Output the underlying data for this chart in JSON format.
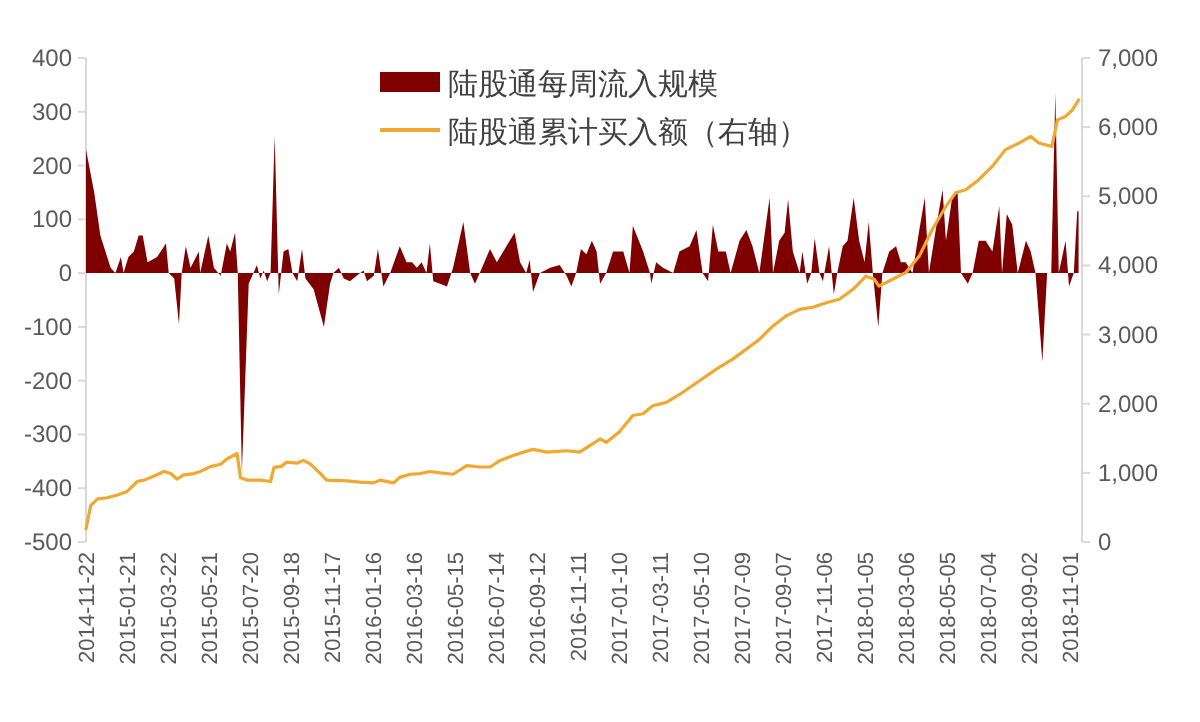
{
  "chart_data": {
    "type": "area",
    "legend": "top",
    "grid": false,
    "xlim": [
      "2014-11-22",
      "2018-11-18"
    ],
    "xticks": [
      "2014-11-22",
      "2015-01-21",
      "2015-03-22",
      "2015-05-21",
      "2015-07-20",
      "2015-09-18",
      "2015-11-17",
      "2016-01-16",
      "2016-03-16",
      "2016-05-15",
      "2016-07-14",
      "2016-09-12",
      "2016-11-11",
      "2017-01-10",
      "2017-03-11",
      "2017-05-10",
      "2017-07-09",
      "2017-09-07",
      "2017-11-06",
      "2018-01-05",
      "2018-03-06",
      "2018-05-05",
      "2018-07-04",
      "2018-09-02",
      "2018-11-01"
    ],
    "ylim": [
      -500,
      400
    ],
    "yticks": [
      -500,
      -400,
      -300,
      -200,
      -100,
      0,
      100,
      200,
      300,
      400
    ],
    "y2lim": [
      0,
      7000
    ],
    "y2ticks": [
      0,
      {
        "value": 1000,
        "label": "1,000"
      },
      {
        "value": 2000,
        "label": "2,000"
      },
      {
        "value": 3000,
        "label": "3,000"
      },
      {
        "value": 4000,
        "label": "4,000"
      },
      {
        "value": 5000,
        "label": "5,000"
      },
      {
        "value": 6000,
        "label": "6,000"
      },
      {
        "value": 7000,
        "label": "7,000"
      }
    ],
    "series": [
      {
        "name": "陆股通每周流入规模",
        "color": "#7f0000",
        "x": [
          "2014-11-22",
          "2014-12-04",
          "2014-12-13",
          "2014-12-28",
          "2015-01-04",
          "2015-01-12",
          "2015-01-16",
          "2015-01-23",
          "2015-01-31",
          "2015-02-07",
          "2015-02-13",
          "2015-02-20",
          "2015-03-06",
          "2015-03-19",
          "2015-03-23",
          "2015-03-31",
          "2015-04-07",
          "2015-04-11",
          "2015-04-17",
          "2015-04-24",
          "2015-05-06",
          "2015-05-08",
          "2015-05-20",
          "2015-05-28",
          "2015-06-07",
          "2015-06-16",
          "2015-06-21",
          "2015-06-28",
          "2015-07-02",
          "2015-07-08",
          "2015-07-18",
          "2015-07-25",
          "2015-07-30",
          "2015-08-04",
          "2015-08-09",
          "2015-08-14",
          "2015-08-19",
          "2015-08-25",
          "2015-08-31",
          "2015-09-07",
          "2015-09-14",
          "2015-09-20",
          "2015-09-27",
          "2015-10-04",
          "2015-10-09",
          "2015-10-21",
          "2015-11-05",
          "2015-11-14",
          "2015-11-19",
          "2015-11-27",
          "2015-12-04",
          "2015-12-13",
          "2015-12-23",
          "2016-01-02",
          "2016-01-07",
          "2016-01-17",
          "2016-01-23",
          "2016-01-31",
          "2016-02-10",
          "2016-02-24",
          "2016-03-05",
          "2016-03-13",
          "2016-03-20",
          "2016-03-27",
          "2016-04-03",
          "2016-04-08",
          "2016-04-13",
          "2016-04-23",
          "2016-05-03",
          "2016-05-12",
          "2016-05-27",
          "2016-06-06",
          "2016-06-13",
          "2016-06-20",
          "2016-07-05",
          "2016-07-15",
          "2016-07-29",
          "2016-08-10",
          "2016-08-18",
          "2016-08-27",
          "2016-09-01",
          "2016-09-06",
          "2016-09-16",
          "2016-10-01",
          "2016-10-15",
          "2016-10-25",
          "2016-11-01",
          "2016-11-08",
          "2016-11-15",
          "2016-11-23",
          "2016-12-01",
          "2016-12-08",
          "2016-12-13",
          "2016-12-22",
          "2017-01-01",
          "2017-01-16",
          "2017-01-25",
          "2017-01-30",
          "2017-02-14",
          "2017-02-24",
          "2017-02-26",
          "2017-03-05",
          "2017-03-15",
          "2017-03-30",
          "2017-04-08",
          "2017-04-23",
          "2017-05-03",
          "2017-05-12",
          "2017-05-20",
          "2017-05-27",
          "2017-06-04",
          "2017-06-15",
          "2017-06-22",
          "2017-07-05",
          "2017-07-15",
          "2017-07-24",
          "2017-08-03",
          "2017-08-18",
          "2017-08-23",
          "2017-09-01",
          "2017-09-09",
          "2017-09-14",
          "2017-09-21",
          "2017-10-01",
          "2017-10-05",
          "2017-10-12",
          "2017-10-18",
          "2017-10-23",
          "2017-10-30",
          "2017-11-04",
          "2017-11-13",
          "2017-11-20",
          "2017-11-25",
          "2017-12-03",
          "2017-12-10",
          "2017-12-19",
          "2017-12-27",
          "2018-01-04",
          "2018-01-10",
          "2018-01-16",
          "2018-01-24",
          "2018-01-30",
          "2018-02-09",
          "2018-02-19",
          "2018-02-26",
          "2018-03-05",
          "2018-03-15",
          "2018-03-25",
          "2018-04-02",
          "2018-04-08",
          "2018-04-18",
          "2018-04-28",
          "2018-05-03",
          "2018-05-12",
          "2018-05-20",
          "2018-05-25",
          "2018-06-04",
          "2018-06-11",
          "2018-06-20",
          "2018-06-30",
          "2018-07-10",
          "2018-07-20",
          "2018-07-24",
          "2018-07-31",
          "2018-08-08",
          "2018-08-16",
          "2018-08-28",
          "2018-09-04",
          "2018-09-11",
          "2018-09-21",
          "2018-09-28",
          "2018-10-04",
          "2018-10-10",
          "2018-10-15",
          "2018-10-20",
          "2018-10-25",
          "2018-10-30",
          "2018-11-06",
          "2018-11-11",
          "2018-11-13"
        ],
        "values": [
          230,
          150,
          70,
          10,
          0,
          30,
          0,
          30,
          40,
          70,
          70,
          20,
          30,
          55,
          0,
          -10,
          -95,
          0,
          50,
          10,
          40,
          0,
          70,
          10,
          -5,
          55,
          40,
          75,
          0,
          -370,
          -20,
          0,
          15,
          -10,
          5,
          -15,
          0,
          255,
          -40,
          40,
          45,
          0,
          -15,
          45,
          -10,
          -30,
          -100,
          -20,
          0,
          10,
          -10,
          -15,
          -5,
          5,
          -15,
          -5,
          45,
          -25,
          0,
          50,
          20,
          20,
          10,
          20,
          0,
          55,
          -15,
          -20,
          -25,
          10,
          95,
          0,
          -20,
          0,
          45,
          20,
          50,
          75,
          20,
          0,
          25,
          -35,
          0,
          10,
          15,
          -5,
          -25,
          0,
          45,
          35,
          60,
          40,
          -20,
          0,
          40,
          40,
          0,
          88,
          40,
          0,
          -20,
          20,
          10,
          0,
          40,
          50,
          80,
          0,
          -15,
          90,
          40,
          40,
          0,
          60,
          80,
          50,
          0,
          140,
          0,
          60,
          75,
          137,
          40,
          0,
          40,
          -20,
          0,
          65,
          0,
          -15,
          50,
          -40,
          0,
          50,
          60,
          140,
          60,
          20,
          95,
          0,
          -100,
          0,
          40,
          50,
          20,
          20,
          0,
          80,
          140,
          0,
          80,
          155,
          60,
          140,
          150,
          0,
          -20,
          0,
          60,
          60,
          40,
          125,
          0,
          110,
          90,
          0,
          60,
          40,
          0,
          -165,
          0,
          0,
          335,
          0,
          30,
          60,
          -25,
          0,
          115,
          115
        ]
      },
      {
        "name": "陆股通累计买入额（右轴）",
        "type": "line",
        "axis": "y2",
        "color": "#f0a830",
        "x": [
          "2014-11-22",
          "2014-11-29",
          "2014-12-09",
          "2014-12-23",
          "2015-01-07",
          "2015-01-21",
          "2015-02-05",
          "2015-02-15",
          "2015-03-01",
          "2015-03-16",
          "2015-03-26",
          "2015-04-04",
          "2015-04-14",
          "2015-04-29",
          "2015-05-08",
          "2015-05-23",
          "2015-06-07",
          "2015-06-16",
          "2015-07-01",
          "2015-07-06",
          "2015-07-16",
          "2015-08-04",
          "2015-08-19",
          "2015-08-24",
          "2015-09-03",
          "2015-09-12",
          "2015-09-27",
          "2015-10-06",
          "2015-10-16",
          "2015-10-31",
          "2015-11-09",
          "2015-12-09",
          "2015-12-28",
          "2016-01-17",
          "2016-01-26",
          "2016-02-15",
          "2016-02-24",
          "2016-03-10",
          "2016-03-25",
          "2016-04-08",
          "2016-04-23",
          "2016-05-12",
          "2016-06-01",
          "2016-06-20",
          "2016-07-05",
          "2016-07-20",
          "2016-08-08",
          "2016-08-23",
          "2016-09-06",
          "2016-09-26",
          "2016-10-25",
          "2016-11-13",
          "2016-11-28",
          "2016-12-13",
          "2016-12-22",
          "2017-01-10",
          "2017-01-30",
          "2017-02-14",
          "2017-02-28",
          "2017-03-20",
          "2017-04-13",
          "2017-05-08",
          "2017-06-01",
          "2017-06-25",
          "2017-07-15",
          "2017-08-03",
          "2017-08-23",
          "2017-09-11",
          "2017-10-01",
          "2017-10-20",
          "2017-11-09",
          "2017-11-28",
          "2017-12-18",
          "2018-01-06",
          "2018-01-18",
          "2018-01-25",
          "2018-02-14",
          "2018-03-05",
          "2018-03-25",
          "2018-04-13",
          "2018-05-03",
          "2018-05-17",
          "2018-06-01",
          "2018-06-20",
          "2018-07-10",
          "2018-07-29",
          "2018-08-18",
          "2018-09-04",
          "2018-09-16",
          "2018-10-05",
          "2018-10-13",
          "2018-10-25",
          "2018-11-04",
          "2018-11-13"
        ],
        "values": [
          190,
          530,
          625,
          640,
          680,
          730,
          875,
          895,
          950,
          1020,
          990,
          910,
          970,
          990,
          1020,
          1090,
          1125,
          1200,
          1280,
          930,
          895,
          895,
          875,
          1080,
          1090,
          1155,
          1140,
          1180,
          1130,
          990,
          895,
          885,
          865,
          855,
          895,
          855,
          935,
          980,
          990,
          1020,
          1000,
          980,
          1105,
          1085,
          1085,
          1180,
          1250,
          1300,
          1340,
          1300,
          1320,
          1300,
          1395,
          1490,
          1440,
          1590,
          1830,
          1855,
          1970,
          2020,
          2165,
          2335,
          2500,
          2645,
          2790,
          2930,
          3125,
          3270,
          3365,
          3395,
          3460,
          3510,
          3655,
          3845,
          3800,
          3700,
          3800,
          3895,
          4135,
          4520,
          4855,
          5050,
          5095,
          5240,
          5435,
          5675,
          5770,
          5865,
          5770,
          5720,
          6105,
          6155,
          6250,
          6395
        ]
      }
    ]
  }
}
